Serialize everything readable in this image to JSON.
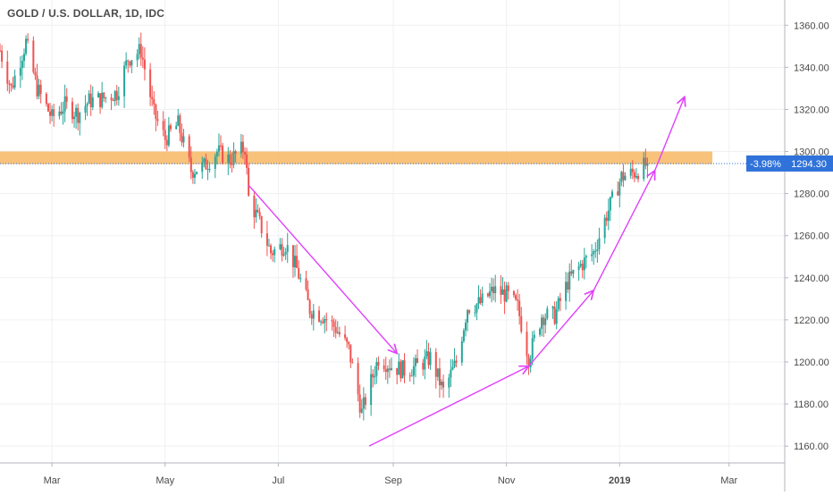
{
  "header": {
    "title": "GOLD / U.S. DOLLAR, 1D, IDC"
  },
  "price_badge": {
    "change": "-3.98%",
    "price": "1294.30"
  },
  "colors": {
    "up": "#26a69a",
    "down": "#ef5350",
    "arrow": "#e040fb",
    "zone": "#f8b35a",
    "badge": "#2f72d9",
    "grid": "#eef0f3",
    "axis_text": "#4a4a4a"
  },
  "chart_data": {
    "type": "candlestick",
    "symbol": "GOLD / U.S. DOLLAR",
    "interval": "1D",
    "source": "IDC",
    "ylim": [
      1152,
      1372
    ],
    "yticks": [
      1160,
      1180,
      1200,
      1220,
      1240,
      1260,
      1280,
      1300,
      1320,
      1340,
      1360
    ],
    "ytick_labels": [
      "1160.00",
      "1180.00",
      "1200.00",
      "1220.00",
      "1240.00",
      "1260.00",
      "1280.00",
      "1300.00",
      "1320.00",
      "1340.00",
      "1360.00"
    ],
    "xlim": [
      "2018-02-01",
      "2019-03-31"
    ],
    "xticks": [
      {
        "date": "2018-03-01",
        "label": "Mar"
      },
      {
        "date": "2018-05-01",
        "label": "May"
      },
      {
        "date": "2018-07-01",
        "label": "Jul"
      },
      {
        "date": "2018-09-01",
        "label": "Sep"
      },
      {
        "date": "2018-11-01",
        "label": "Nov"
      },
      {
        "date": "2019-01-01",
        "label": "2019"
      },
      {
        "date": "2019-03-01",
        "label": "Mar"
      }
    ],
    "last_price": 1294.3,
    "resistance_zone": {
      "from": 1294,
      "to": 1300,
      "start": "2018-02-01",
      "end": "2019-02-20"
    },
    "price_path": [
      [
        "2018-02-01",
        1348
      ],
      [
        "2018-02-07",
        1330
      ],
      [
        "2018-02-15",
        1352
      ],
      [
        "2018-02-21",
        1330
      ],
      [
        "2018-03-01",
        1316
      ],
      [
        "2018-03-08",
        1322
      ],
      [
        "2018-03-15",
        1318
      ],
      [
        "2018-03-21",
        1324
      ],
      [
        "2018-03-28",
        1325
      ],
      [
        "2018-04-05",
        1328
      ],
      [
        "2018-04-11",
        1344
      ],
      [
        "2018-04-18",
        1348
      ],
      [
        "2018-04-25",
        1318
      ],
      [
        "2018-05-01",
        1306
      ],
      [
        "2018-05-08",
        1313
      ],
      [
        "2018-05-15",
        1291
      ],
      [
        "2018-05-22",
        1293
      ],
      [
        "2018-05-29",
        1300
      ],
      [
        "2018-06-05",
        1296
      ],
      [
        "2018-06-13",
        1302
      ],
      [
        "2018-06-15",
        1278
      ],
      [
        "2018-06-20",
        1268
      ],
      [
        "2018-06-27",
        1252
      ],
      [
        "2018-07-05",
        1256
      ],
      [
        "2018-07-11",
        1244
      ],
      [
        "2018-07-18",
        1225
      ],
      [
        "2018-07-25",
        1222
      ],
      [
        "2018-08-01",
        1216
      ],
      [
        "2018-08-08",
        1206
      ],
      [
        "2018-08-15",
        1176
      ],
      [
        "2018-08-17",
        1182
      ],
      [
        "2018-08-24",
        1202
      ],
      [
        "2018-08-31",
        1198
      ],
      [
        "2018-09-07",
        1196
      ],
      [
        "2018-09-14",
        1198
      ],
      [
        "2018-09-21",
        1202
      ],
      [
        "2018-09-28",
        1186
      ],
      [
        "2018-10-05",
        1200
      ],
      [
        "2018-10-11",
        1226
      ],
      [
        "2018-10-18",
        1228
      ],
      [
        "2018-10-25",
        1234
      ],
      [
        "2018-11-01",
        1232
      ],
      [
        "2018-11-07",
        1226
      ],
      [
        "2018-11-13",
        1202
      ],
      [
        "2018-11-20",
        1222
      ],
      [
        "2018-11-27",
        1222
      ],
      [
        "2018-12-04",
        1238
      ],
      [
        "2018-12-11",
        1246
      ],
      [
        "2018-12-18",
        1252
      ],
      [
        "2018-12-25",
        1270
      ],
      [
        "2019-01-02",
        1288
      ],
      [
        "2019-01-09",
        1290
      ],
      [
        "2019-01-16",
        1294
      ]
    ],
    "arrows": [
      {
        "from": [
          "2018-06-15",
          1284
        ],
        "to": [
          "2018-09-03",
          1204
        ]
      },
      {
        "from": [
          "2018-08-19",
          1160
        ],
        "to": [
          "2018-11-13",
          1198
        ]
      },
      {
        "from": [
          "2018-11-13",
          1198
        ],
        "to": [
          "2018-12-18",
          1234
        ]
      },
      {
        "from": [
          "2018-12-18",
          1234
        ],
        "to": [
          "2019-01-20",
          1291
        ]
      },
      {
        "from": [
          "2019-01-20",
          1291
        ],
        "to": [
          "2019-02-05",
          1326
        ]
      }
    ]
  }
}
